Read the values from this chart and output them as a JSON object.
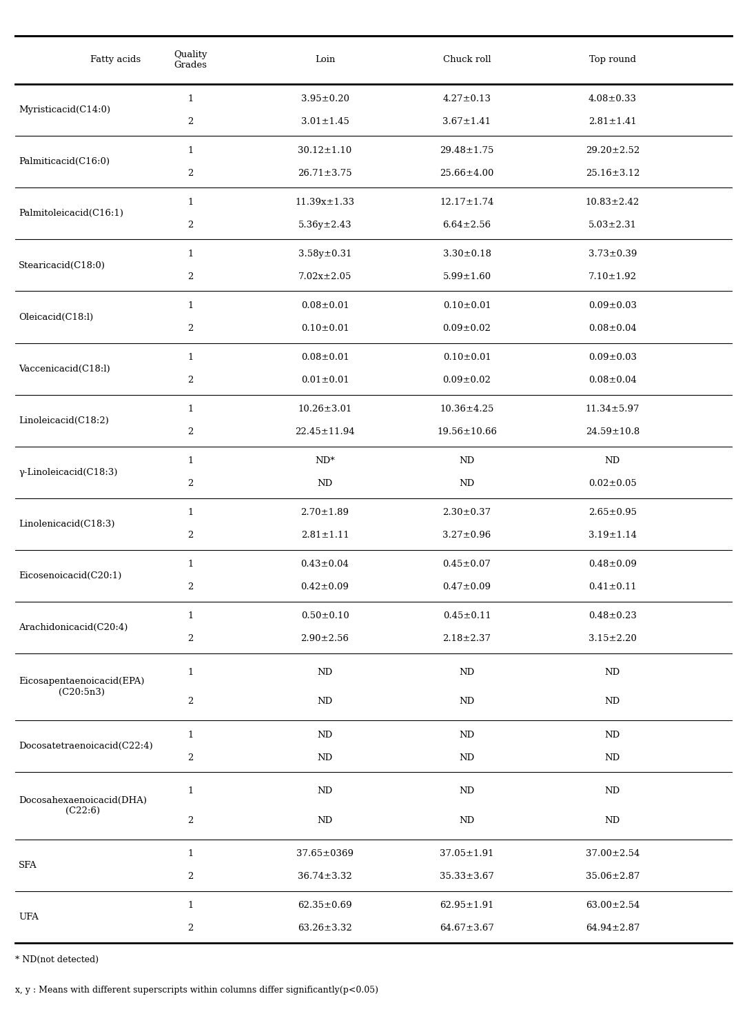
{
  "headers": [
    "Fatty acids",
    "Quality\nGrades",
    "Loin",
    "Chuck roll",
    "Top round"
  ],
  "row_groups": [
    {
      "label": "Myristicacid(C14:0)",
      "multiline": false,
      "r1": [
        "1",
        "3.95±0.20",
        "4.27±0.13",
        "4.08±0.33"
      ],
      "r2": [
        "2",
        "3.01±1.45",
        "3.67±1.41",
        "2.81±1.41"
      ]
    },
    {
      "label": "Palmiticacid(C16:0)",
      "multiline": false,
      "r1": [
        "1",
        "30.12±1.10",
        "29.48±1.75",
        "29.20±2.52"
      ],
      "r2": [
        "2",
        "26.71±3.75",
        "25.66±4.00",
        "25.16±3.12"
      ]
    },
    {
      "label": "Palmitoleicacid(C16:1)",
      "multiline": false,
      "r1": [
        "1",
        "11.39±1.33",
        "12.17±1.74",
        "10.83±2.42"
      ],
      "r1_loin_sup": "x",
      "r2": [
        "2",
        "5.36±2.43",
        "6.64±2.56",
        "5.03±2.31"
      ],
      "r2_loin_sup": "y"
    },
    {
      "label": "Stearicacid(C18:0)",
      "multiline": false,
      "r1": [
        "1",
        "3.58±0.31",
        "3.30±0.18",
        "3.73±0.39"
      ],
      "r1_loin_sup": "y",
      "r2": [
        "2",
        "7.02±2.05",
        "5.99±1.60",
        "7.10±1.92"
      ],
      "r2_loin_sup": "x"
    },
    {
      "label": "Oleicacid(C18:l)",
      "multiline": false,
      "r1": [
        "1",
        "0.08±0.01",
        "0.10±0.01",
        "0.09±0.03"
      ],
      "r2": [
        "2",
        "0.10±0.01",
        "0.09±0.02",
        "0.08±0.04"
      ]
    },
    {
      "label": "Vaccenicacid(C18:l)",
      "multiline": false,
      "r1": [
        "1",
        "0.08±0.01",
        "0.10±0.01",
        "0.09±0.03"
      ],
      "r2": [
        "2",
        "0.01±0.01",
        "0.09±0.02",
        "0.08±0.04"
      ]
    },
    {
      "label": "Linoleicacid(C18:2)",
      "multiline": false,
      "r1": [
        "1",
        "10.26±3.01",
        "10.36±4.25",
        "11.34±5.97"
      ],
      "r2": [
        "2",
        "22.45±11.94",
        "19.56±10.66",
        "24.59±10.8"
      ]
    },
    {
      "label": "γ-Linoleicacid(C18:3)",
      "multiline": false,
      "r1": [
        "1",
        "ND*",
        "ND",
        "ND"
      ],
      "r2": [
        "2",
        "ND",
        "ND",
        "0.02±0.05"
      ]
    },
    {
      "label": "Linolenicacid(C18:3)",
      "multiline": false,
      "r1": [
        "1",
        "2.70±1.89",
        "2.30±0.37",
        "2.65±0.95"
      ],
      "r2": [
        "2",
        "2.81±1.11",
        "3.27±0.96",
        "3.19±1.14"
      ]
    },
    {
      "label": "Eicosenoicacid(C20:1)",
      "multiline": false,
      "r1": [
        "1",
        "0.43±0.04",
        "0.45±0.07",
        "0.48±0.09"
      ],
      "r2": [
        "2",
        "0.42±0.09",
        "0.47±0.09",
        "0.41±0.11"
      ]
    },
    {
      "label": "Arachidonicacid(C20:4)",
      "multiline": false,
      "r1": [
        "1",
        "0.50±0.10",
        "0.45±0.11",
        "0.48±0.23"
      ],
      "r2": [
        "2",
        "2.90±2.56",
        "2.18±2.37",
        "3.15±2.20"
      ]
    },
    {
      "label": "Eicosapentaenoicacid(EPA)\n(C20:5n3)",
      "multiline": true,
      "r1": [
        "1",
        "ND",
        "ND",
        "ND"
      ],
      "r2": [
        "2",
        "ND",
        "ND",
        "ND"
      ]
    },
    {
      "label": "Docosatetraenoicacid(C22:4)",
      "multiline": false,
      "r1": [
        "1",
        "ND",
        "ND",
        "ND"
      ],
      "r2": [
        "2",
        "ND",
        "ND",
        "ND"
      ]
    },
    {
      "label": "Docosahexaenoicacid(DHA)\n(C22:6)",
      "multiline": true,
      "r1": [
        "1",
        "ND",
        "ND",
        "ND"
      ],
      "r2": [
        "2",
        "ND",
        "ND",
        "ND"
      ]
    },
    {
      "label": "SFA",
      "multiline": false,
      "r1": [
        "1",
        "37.65±0369",
        "37.05±1.91",
        "37.00±2.54"
      ],
      "r2": [
        "2",
        "36.74±3.32",
        "35.33±3.67",
        "35.06±2.87"
      ]
    },
    {
      "label": "UFA",
      "multiline": false,
      "r1": [
        "1",
        "62.35±0.69",
        "62.95±1.91",
        "63.00±2.54"
      ],
      "r2": [
        "2",
        "63.26±3.32",
        "64.67±3.67",
        "64.94±2.87"
      ]
    }
  ],
  "footnotes": [
    "* ND(not detected)",
    "x, y : Means with different superscripts within columns differ significantly(p<0.05)"
  ],
  "background_color": "#ffffff",
  "line_color": "#000000",
  "text_color": "#000000",
  "font_size": 9.5,
  "sup_font_size": 7.0
}
